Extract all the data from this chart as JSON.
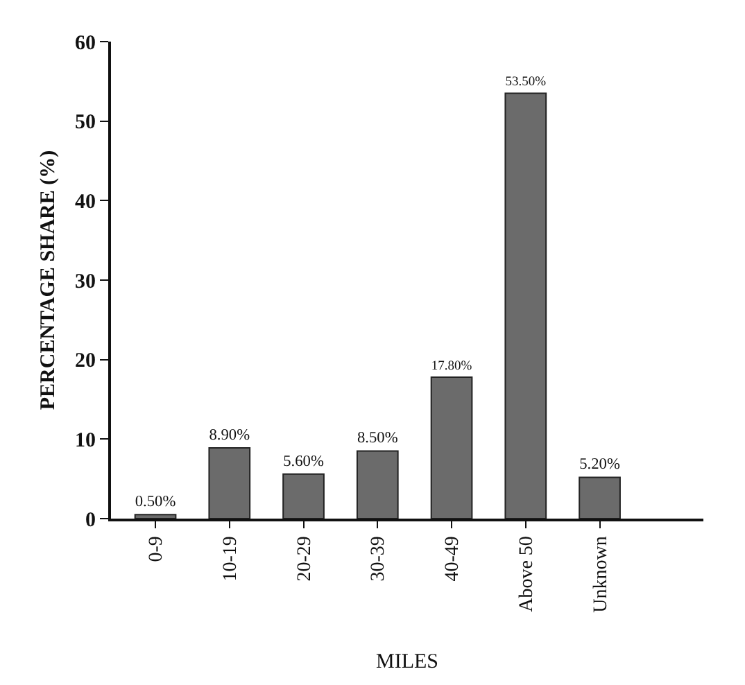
{
  "chart_data": {
    "type": "bar",
    "xlabel": "MILES",
    "ylabel": "PERCENTAGE SHARE (%)",
    "categories": [
      "0-9",
      "10-19",
      "20-29",
      "30-39",
      "40-49",
      "Above 50",
      "Unknown"
    ],
    "values": [
      0.5,
      8.9,
      5.6,
      8.5,
      17.8,
      53.5,
      5.2
    ],
    "value_labels": [
      "0.50%",
      "8.90%",
      "5.60%",
      "8.50%",
      "17.80%",
      "53.50%",
      "5.20%"
    ],
    "color": "#6b6b6b",
    "ylim": [
      0,
      60
    ],
    "yticks": [
      0,
      10,
      20,
      30,
      40,
      50,
      60
    ],
    "grid": false
  }
}
